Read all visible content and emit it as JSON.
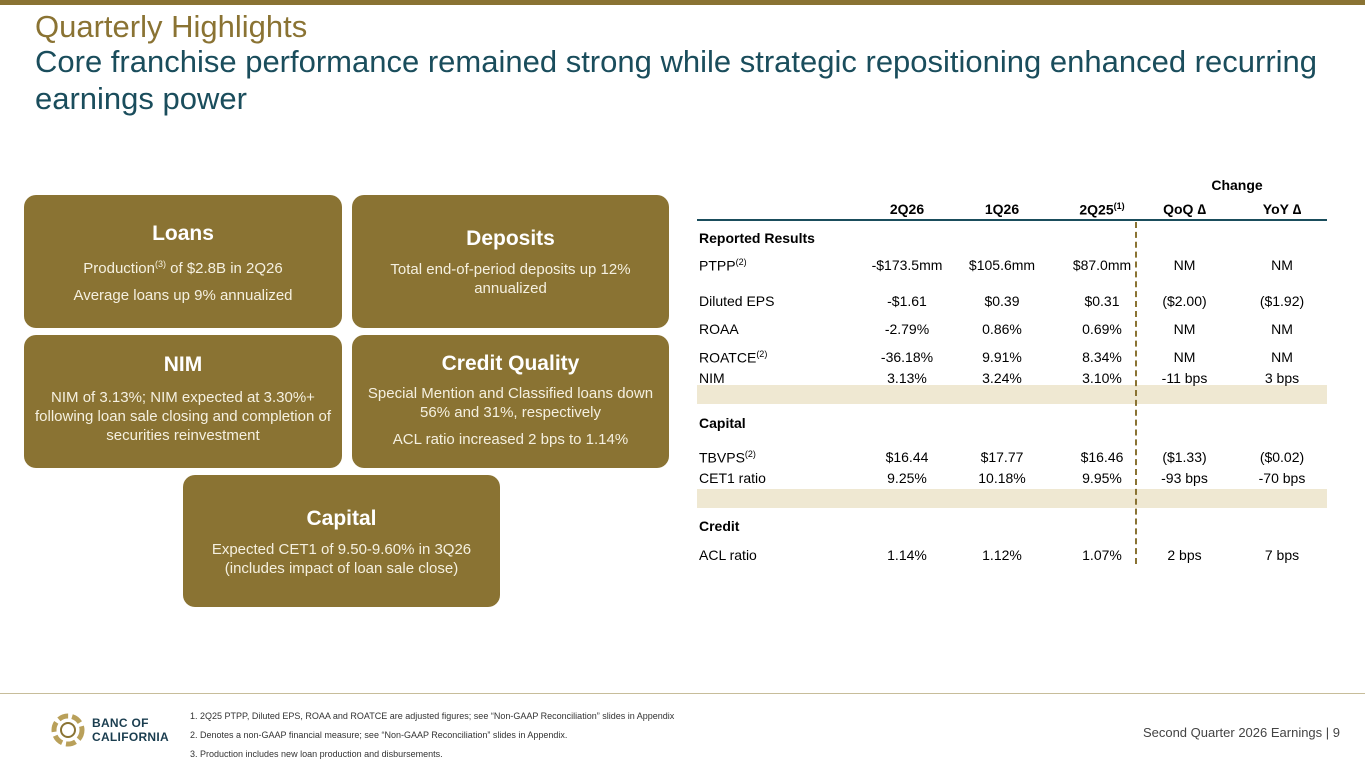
{
  "title": "Quarterly Highlights",
  "subtitle": "Core franchise performance remained strong while strategic repositioning enhanced recurring earnings power",
  "cards": {
    "loans": {
      "heading": "Loans",
      "line1_pre": "Production",
      "line1_sup": "(3)",
      "line1_post": " of $2.8B in 2Q26",
      "line2": "Average loans up 9% annualized"
    },
    "deposits": {
      "heading": "Deposits",
      "line1": "Total end-of-period deposits up 12% annualized"
    },
    "nim": {
      "heading": "NIM",
      "line1": "NIM of 3.13%; NIM expected at 3.30%+ following loan sale closing and completion of securities reinvestment"
    },
    "credit": {
      "heading": "Credit Quality",
      "line1": "Special Mention and Classified loans down 56% and 31%, respectively",
      "line2": "ACL ratio increased 2 bps to 1.14%"
    },
    "capital": {
      "heading": "Capital",
      "line1": "Expected CET1 of 9.50-9.60% in 3Q26 (includes impact of loan sale close)"
    }
  },
  "table": {
    "change_label": "Change",
    "headers": {
      "c1": "2Q26",
      "c2": "1Q26",
      "c3": "2Q25",
      "c3_sup": "(1)",
      "c4": "QoQ ∆",
      "c5": "YoY ∆"
    },
    "sections": {
      "reported": "Reported Results",
      "capital": "Capital",
      "credit": "Credit"
    },
    "rows": [
      {
        "label": "PTPP",
        "sup": "(2)",
        "v1": "-$173.5mm",
        "v2": "$105.6mm",
        "v3": "$87.0mm",
        "v4": "NM",
        "v5": "NM"
      },
      {
        "label": "Diluted EPS",
        "sup": "",
        "v1": "-$1.61",
        "v2": "$0.39",
        "v3": "$0.31",
        "v4": "($2.00)",
        "v5": "($1.92)"
      },
      {
        "label": "ROAA",
        "sup": "",
        "v1": "-2.79%",
        "v2": "0.86%",
        "v3": "0.69%",
        "v4": "NM",
        "v5": "NM"
      },
      {
        "label": "ROATCE",
        "sup": "(2)",
        "v1": "-36.18%",
        "v2": "9.91%",
        "v3": "8.34%",
        "v4": "NM",
        "v5": "NM"
      },
      {
        "label": "NIM",
        "sup": "",
        "v1": "3.13%",
        "v2": "3.24%",
        "v3": "3.10%",
        "v4": "-11 bps",
        "v5": "3 bps"
      },
      {
        "label": "TBVPS",
        "sup": "(2)",
        "v1": "$16.44",
        "v2": "$17.77",
        "v3": "$16.46",
        "v4": "($1.33)",
        "v5": "($0.02)"
      },
      {
        "label": "CET1 ratio",
        "sup": "",
        "v1": "9.25%",
        "v2": "10.18%",
        "v3": "9.95%",
        "v4": "-93 bps",
        "v5": "-70 bps"
      },
      {
        "label": "ACL ratio",
        "sup": "",
        "v1": "1.14%",
        "v2": "1.12%",
        "v3": "1.07%",
        "v4": "2 bps",
        "v5": "7 bps"
      }
    ]
  },
  "footer": {
    "logo_line1": "BANC OF",
    "logo_line2": "CALIFORNIA",
    "notes": [
      "1.  2Q25 PTPP, Diluted EPS, ROAA and ROATCE are adjusted figures; see “Non-GAAP Reconciliation” slides in Appendix",
      "2.  Denotes a non-GAAP financial measure; see “Non-GAAP Reconciliation” slides in Appendix.",
      "3.  Production includes new loan production and disbursements."
    ],
    "right_text": "Second Quarter 2026 Earnings |  9"
  },
  "colors": {
    "gold": "#8a7333",
    "teal": "#1a4d5c",
    "shade": "#efe8d2"
  }
}
